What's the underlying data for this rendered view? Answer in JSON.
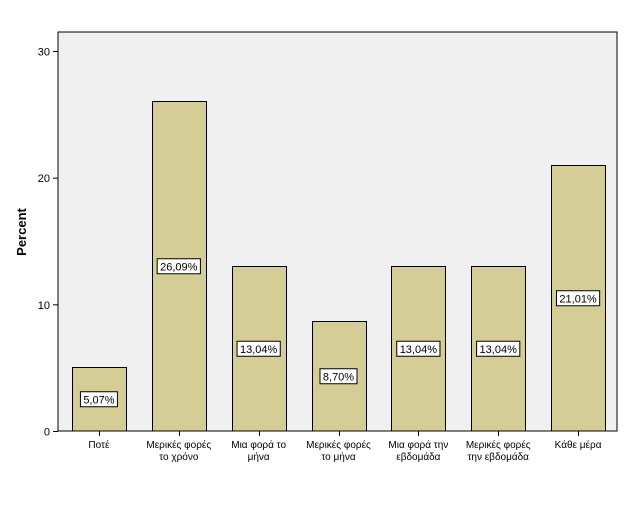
{
  "chart_data": {
    "type": "bar",
    "ylabel": "Percent",
    "xlabel": "",
    "ylim": [
      0,
      30
    ],
    "yticks": [
      "0",
      "10",
      "20",
      "30"
    ],
    "grid": false,
    "categories": [
      [
        "Ποτέ"
      ],
      [
        "Μερικές φορές",
        "το χρόνο"
      ],
      [
        "Μια φορά το",
        "μήνα"
      ],
      [
        "Μερικές φορές",
        "το μήνα"
      ],
      [
        "Μια φορά την",
        "εβδομάδα"
      ],
      [
        "Μερικές φορές",
        "την εβδομάδα"
      ],
      [
        "Κάθε μέρα"
      ]
    ],
    "values": [
      5.07,
      26.09,
      13.04,
      8.7,
      13.04,
      13.04,
      21.01
    ],
    "data_labels": [
      "5,07%",
      "26,09%",
      "13,04%",
      "8,70%",
      "13,04%",
      "13,04%",
      "21,01%"
    ],
    "colors": {
      "plot_background": "#f0f0f0",
      "bar_fill": "#d4ce96",
      "bar_stroke": "#000000",
      "axis": "#000000"
    }
  }
}
